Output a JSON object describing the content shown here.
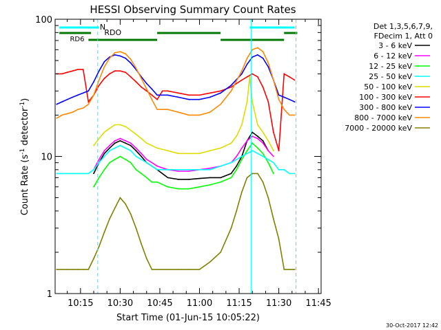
{
  "chart_data": {
    "type": "line",
    "title": "HESSI Observing Summary Count Rates",
    "xlabel": "Start Time (01-Jun-15 10:05:22)",
    "ylabel": "Count Rate (s⁻¹ detector⁻¹)",
    "ylabel_main": "Count Rate (s",
    "ylabel_sup1": "-1",
    "ylabel_mid": " detector",
    "ylabel_sup2": "-1",
    "ylabel_end": ")",
    "y_scale": "log",
    "ylim": [
      1,
      100
    ],
    "xlim": [
      "10:05",
      "11:45"
    ],
    "xlim_minutes": [
      605.4,
      706
    ],
    "x_ticks": [
      {
        "label": "10:15",
        "t": 615
      },
      {
        "label": "10:30",
        "t": 630
      },
      {
        "label": "10:45",
        "t": 645
      },
      {
        "label": "11:00",
        "t": 660
      },
      {
        "label": "11:15",
        "t": 675
      },
      {
        "label": "11:30",
        "t": 690
      },
      {
        "label": "11:45",
        "t": 705
      }
    ],
    "y_ticks": [
      {
        "label": "1",
        "v": 1
      },
      {
        "label": "10",
        "v": 10
      },
      {
        "label": "100",
        "v": 100
      }
    ],
    "legend": {
      "placement": "right",
      "header": [
        "Det 1,3,5,6,7,9,",
        "FDecim 1, Att 0"
      ]
    },
    "series": [
      {
        "name": "3 - 6 keV",
        "color": "#000000",
        "x": [
          620,
          622,
          624,
          626,
          628,
          630,
          632,
          634,
          636,
          638,
          640,
          642,
          644,
          648,
          652,
          656,
          660,
          664,
          668,
          672,
          674,
          676,
          678,
          680,
          682,
          684,
          686
        ],
        "y": [
          7.5,
          9,
          10.5,
          11.5,
          12.5,
          13,
          12.5,
          12,
          11,
          10,
          9,
          8.5,
          8,
          7,
          6.8,
          6.8,
          6.9,
          7,
          7,
          7.5,
          8.5,
          10,
          13,
          15,
          14,
          13,
          11
        ]
      },
      {
        "name": "6 - 12 keV",
        "color": "#ff00ff",
        "x": [
          620,
          622,
          624,
          626,
          628,
          630,
          632,
          634,
          636,
          638,
          640,
          642,
          644,
          648,
          652,
          656,
          660,
          664,
          668,
          672,
          674,
          676,
          678,
          680,
          682,
          684,
          686,
          688
        ],
        "y": [
          8,
          9.5,
          11,
          12,
          13,
          13.5,
          13,
          12.5,
          11.5,
          10.5,
          9.5,
          9,
          8.5,
          8,
          7.8,
          7.8,
          8,
          8.2,
          8.5,
          9,
          10,
          11.5,
          13,
          14,
          13.5,
          12.5,
          11,
          10
        ]
      },
      {
        "name": "12 - 25 keV",
        "color": "#00ff00",
        "x": [
          620,
          622,
          624,
          626,
          628,
          630,
          632,
          634,
          636,
          638,
          640,
          642,
          644,
          648,
          652,
          656,
          660,
          664,
          668,
          672,
          674,
          676,
          678,
          680,
          682,
          684,
          686,
          688
        ],
        "y": [
          6,
          7,
          8,
          9,
          9.5,
          10,
          9.5,
          9,
          8,
          7.5,
          7,
          6.5,
          6.5,
          6,
          5.8,
          5.8,
          6,
          6.2,
          6.5,
          7,
          8,
          9.5,
          11,
          12.5,
          11.5,
          10.5,
          9,
          7.5
        ]
      },
      {
        "name": "25 - 50 keV",
        "color": "#00ffff",
        "x": [
          606,
          608,
          610,
          612,
          614,
          616,
          618,
          620,
          622,
          624,
          626,
          628,
          630,
          632,
          634,
          636,
          638,
          640,
          642,
          644,
          646,
          648,
          652,
          656,
          660,
          664,
          668,
          672,
          676,
          680,
          684,
          688,
          690,
          692,
          694,
          696
        ],
        "y": [
          7.5,
          7.5,
          7.5,
          7.5,
          7.5,
          7.5,
          7.5,
          8,
          9,
          10,
          11,
          11.5,
          12,
          11.5,
          11,
          10,
          9.5,
          9,
          8.5,
          8,
          8,
          8,
          8,
          8,
          8,
          8,
          8.5,
          9,
          10,
          11,
          10,
          9,
          8,
          8,
          7.5,
          7.5
        ]
      },
      {
        "name": "50 - 100 keV",
        "color": "#dddd00",
        "x": [
          620,
          622,
          624,
          626,
          628,
          630,
          632,
          634,
          636,
          638,
          640,
          642,
          644,
          648,
          652,
          656,
          660,
          664,
          668,
          672,
          674,
          676,
          678,
          679,
          680,
          682,
          684,
          686,
          688
        ],
        "y": [
          12,
          13.5,
          15,
          16,
          17,
          17,
          16.5,
          15.5,
          14.5,
          13.5,
          12.5,
          12,
          11.5,
          11,
          10.5,
          10.5,
          10.5,
          11,
          11.5,
          12.5,
          14,
          17,
          25,
          38,
          25,
          17,
          15,
          13,
          11
        ]
      },
      {
        "name": "100 - 300 keV",
        "color": "#ff0000",
        "x": [
          606,
          608,
          610,
          612,
          614,
          616,
          618,
          620,
          622,
          624,
          626,
          628,
          630,
          632,
          634,
          636,
          638,
          640,
          642,
          644,
          646,
          648,
          652,
          656,
          660,
          664,
          668,
          672,
          674,
          676,
          678,
          680,
          682,
          684,
          686,
          688,
          690,
          692,
          694,
          696
        ],
        "y": [
          40,
          40,
          41,
          42,
          43,
          43,
          25,
          28,
          33,
          37,
          40,
          42,
          42,
          41,
          38,
          35,
          32,
          30,
          28,
          26,
          30,
          30,
          29,
          28,
          28,
          29,
          30,
          32,
          34,
          36,
          38,
          40,
          38,
          32,
          25,
          15,
          11,
          40,
          38,
          36
        ]
      },
      {
        "name": "300 - 800 keV",
        "color": "#0000ff",
        "x": [
          606,
          608,
          610,
          612,
          614,
          616,
          618,
          620,
          622,
          624,
          626,
          628,
          630,
          632,
          634,
          636,
          638,
          640,
          642,
          644,
          648,
          652,
          656,
          660,
          664,
          668,
          672,
          676,
          678,
          680,
          682,
          684,
          686,
          688,
          690,
          692,
          694,
          696
        ],
        "y": [
          24,
          25,
          26,
          27,
          28,
          29,
          30,
          35,
          42,
          49,
          53,
          55,
          54,
          52,
          48,
          43,
          38,
          34,
          31,
          28,
          28,
          27,
          26,
          26,
          27,
          29,
          33,
          40,
          47,
          53,
          55,
          52,
          45,
          36,
          28,
          27,
          26,
          25
        ]
      },
      {
        "name": "800 - 7000 keV",
        "color": "#ff8800",
        "x": [
          606,
          608,
          610,
          612,
          614,
          616,
          618,
          620,
          622,
          624,
          626,
          628,
          630,
          632,
          634,
          636,
          638,
          640,
          642,
          644,
          648,
          652,
          656,
          660,
          664,
          668,
          672,
          676,
          678,
          680,
          682,
          684,
          686,
          688,
          690,
          692,
          694,
          696
        ],
        "y": [
          19,
          20,
          20.5,
          21,
          22,
          22.5,
          24,
          28,
          36,
          45,
          52,
          57,
          58,
          56,
          51,
          44,
          37,
          31,
          26,
          22,
          22,
          21,
          20,
          20,
          21,
          24,
          30,
          42,
          52,
          60,
          62,
          58,
          48,
          36,
          26,
          22,
          20,
          20
        ]
      },
      {
        "name": "7000 - 20000 keV",
        "color": "#808000",
        "x": [
          606,
          608,
          610,
          612,
          614,
          616,
          618,
          620,
          622,
          624,
          626,
          628,
          630,
          632,
          634,
          636,
          638,
          640,
          642,
          644,
          646,
          648,
          652,
          656,
          660,
          664,
          668,
          672,
          674,
          676,
          678,
          680,
          682,
          684,
          686,
          688,
          690,
          692,
          694,
          696
        ],
        "y": [
          1.5,
          1.5,
          1.5,
          1.5,
          1.5,
          1.5,
          1.5,
          1.8,
          2.2,
          2.8,
          3.5,
          4.2,
          5,
          4.5,
          3.8,
          3,
          2.3,
          1.8,
          1.5,
          1.5,
          1.5,
          1.5,
          1.5,
          1.5,
          1.5,
          1.7,
          2,
          3,
          4,
          5.5,
          7,
          7.5,
          7.5,
          6.5,
          5,
          3.5,
          2.5,
          1.5,
          1.5,
          1.5
        ]
      }
    ],
    "annotations": [
      {
        "label": "N",
        "color": "#00cccc"
      },
      {
        "label": "RDO",
        "color": "#009900"
      },
      {
        "label": "RD6",
        "color": "#009900"
      }
    ],
    "ticks_raw_note": "",
    "timestamp": "30-Oct-2017 12:42"
  }
}
